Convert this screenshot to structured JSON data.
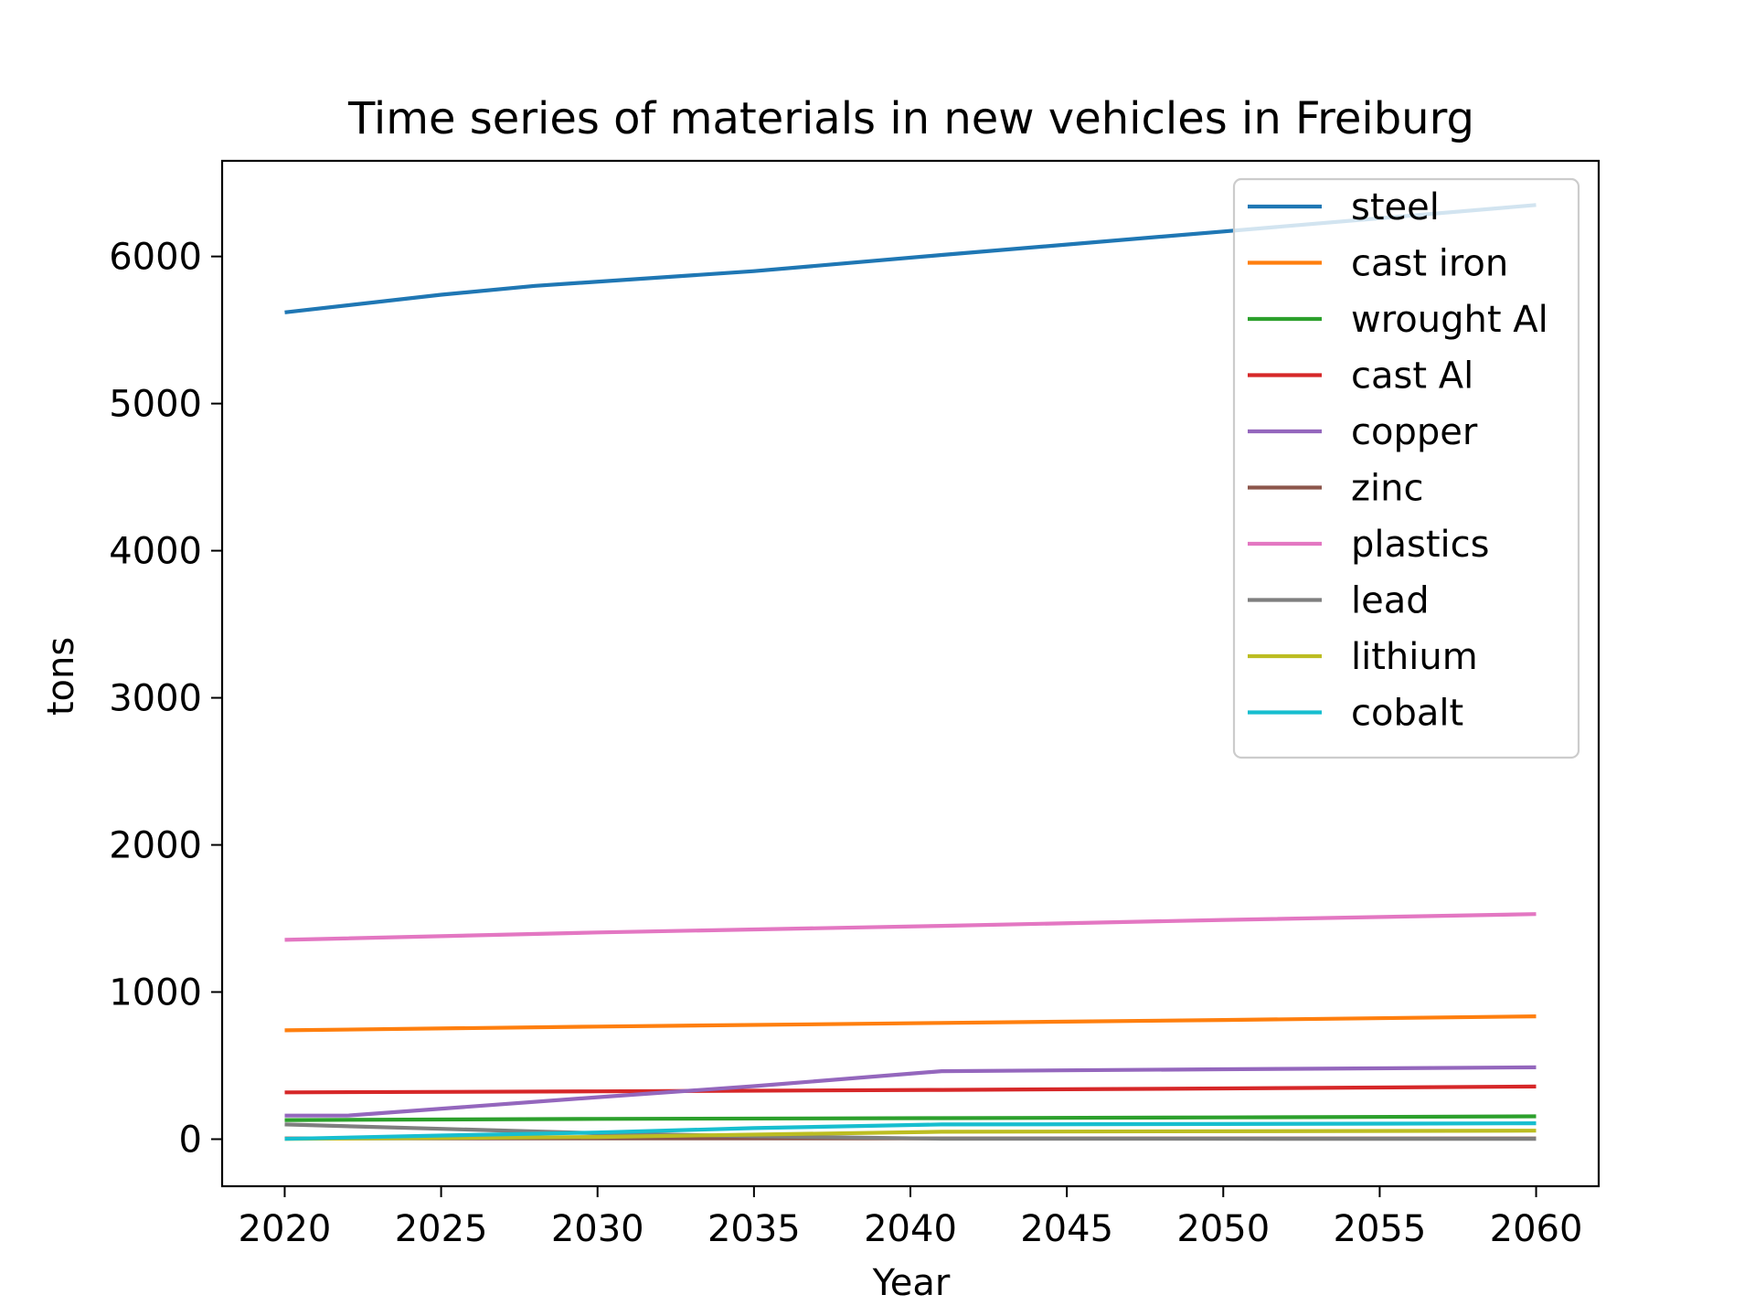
{
  "chart_data": {
    "type": "line",
    "title": "Time series of materials in new vehicles in Freiburg",
    "xlabel": "Year",
    "ylabel": "tons",
    "xlim": [
      2018,
      2062
    ],
    "ylim": [
      -320,
      6650
    ],
    "xticks": [
      2020,
      2025,
      2030,
      2035,
      2040,
      2045,
      2050,
      2055,
      2060
    ],
    "yticks": [
      0,
      1000,
      2000,
      3000,
      4000,
      5000,
      6000
    ],
    "grid": false,
    "legend_position": "top-right",
    "series": [
      {
        "name": "steel",
        "color": "#1f77b4",
        "x": [
          2020,
          2025,
          2028,
          2035,
          2041,
          2050,
          2060
        ],
        "y": [
          5620,
          5740,
          5800,
          5900,
          6010,
          6170,
          6350
        ]
      },
      {
        "name": "cast iron",
        "color": "#ff7f0e",
        "x": [
          2020,
          2030,
          2041,
          2050,
          2060
        ],
        "y": [
          740,
          765,
          790,
          810,
          835
        ]
      },
      {
        "name": "wrought Al",
        "color": "#2ca02c",
        "x": [
          2020,
          2030,
          2041,
          2050,
          2060
        ],
        "y": [
          130,
          138,
          143,
          148,
          155
        ]
      },
      {
        "name": "cast Al",
        "color": "#d62728",
        "x": [
          2020,
          2030,
          2041,
          2050,
          2060
        ],
        "y": [
          318,
          325,
          335,
          345,
          358
        ]
      },
      {
        "name": "copper",
        "color": "#9467bd",
        "x": [
          2020,
          2022,
          2030,
          2035,
          2041,
          2050,
          2060
        ],
        "y": [
          160,
          160,
          285,
          360,
          462,
          475,
          488
        ]
      },
      {
        "name": "zinc",
        "color": "#8c564b",
        "x": [
          2020,
          2030,
          2041,
          2060
        ],
        "y": [
          5,
          5,
          5,
          5
        ]
      },
      {
        "name": "plastics",
        "color": "#e377c2",
        "x": [
          2020,
          2030,
          2041,
          2050,
          2060
        ],
        "y": [
          1355,
          1405,
          1450,
          1490,
          1530
        ]
      },
      {
        "name": "lead",
        "color": "#7f7f7f",
        "x": [
          2020,
          2025,
          2030,
          2035,
          2041,
          2060
        ],
        "y": [
          100,
          70,
          40,
          20,
          3,
          2
        ]
      },
      {
        "name": "lithium",
        "color": "#bcbd22",
        "x": [
          2020,
          2030,
          2041,
          2060
        ],
        "y": [
          2,
          15,
          50,
          58
        ]
      },
      {
        "name": "cobalt",
        "color": "#17becf",
        "x": [
          2020,
          2025,
          2030,
          2035,
          2041,
          2050,
          2060
        ],
        "y": [
          2,
          25,
          45,
          75,
          100,
          103,
          108
        ]
      }
    ]
  }
}
